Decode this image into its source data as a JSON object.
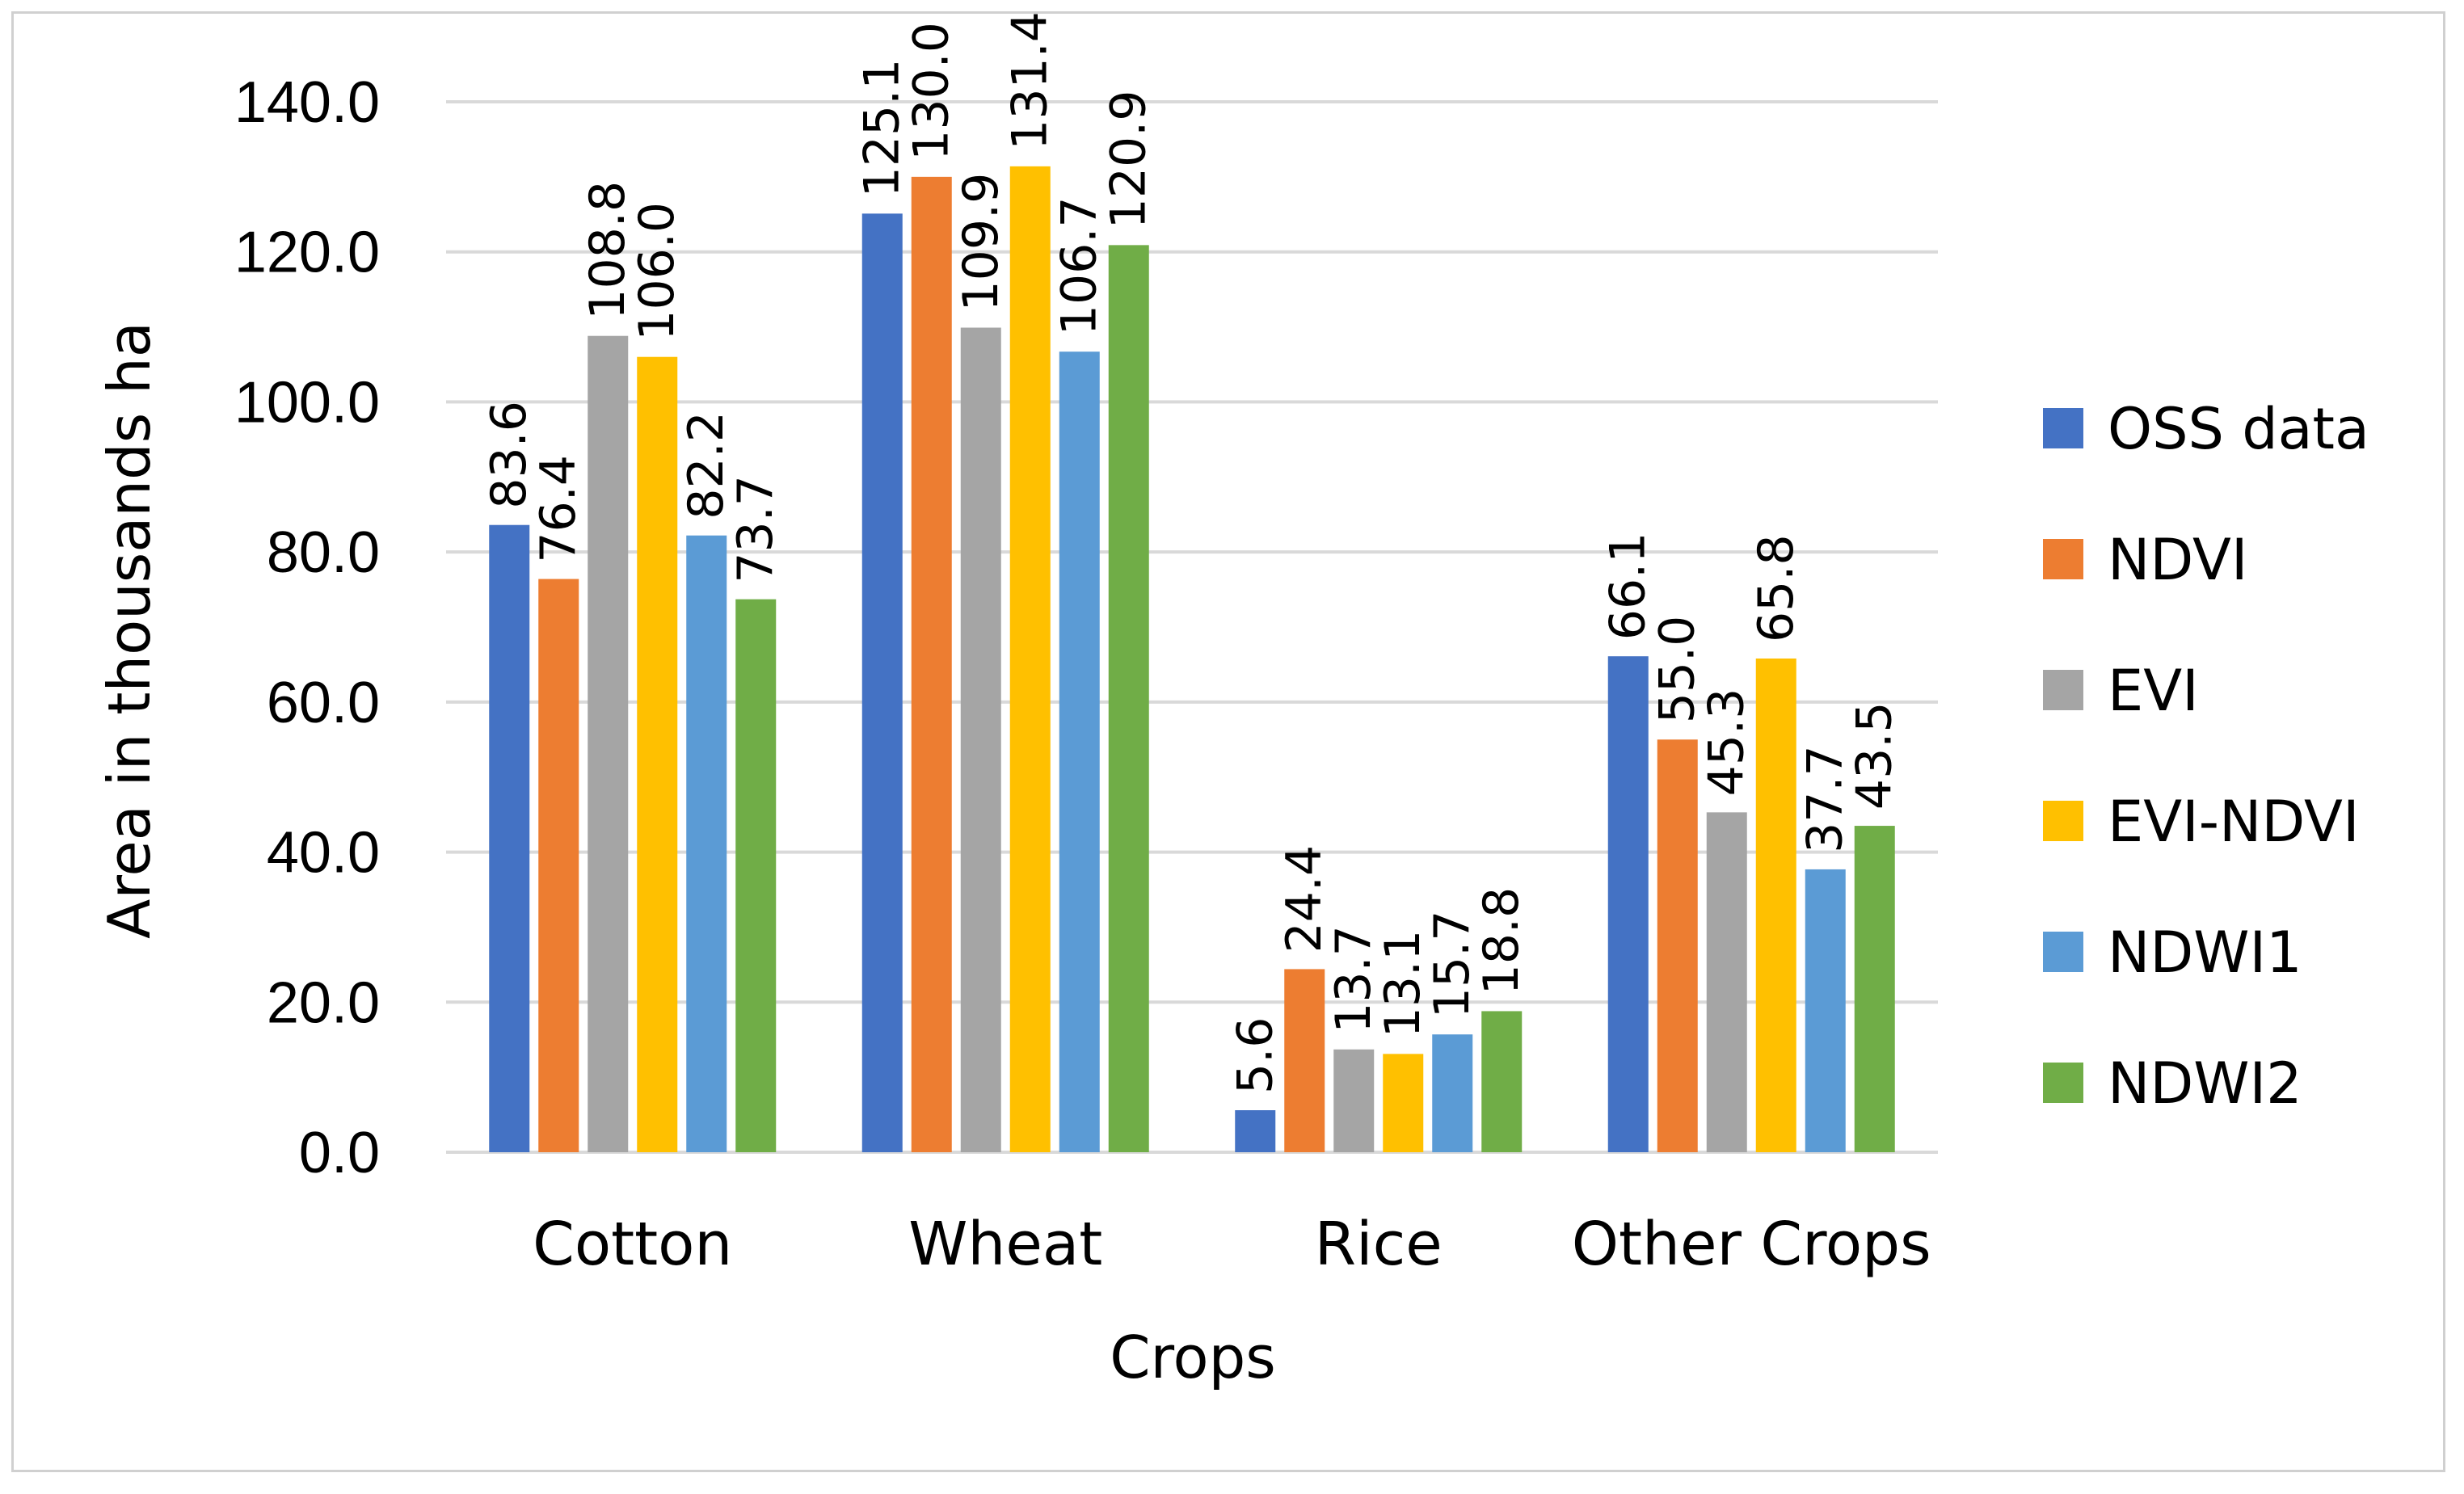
{
  "chart_data": {
    "type": "bar",
    "title": "",
    "xlabel": "Crops",
    "ylabel": "Area in thousands ha",
    "ylim": [
      0,
      140
    ],
    "ytick_step": 20,
    "ytick_labels": [
      "0.0",
      "20.0",
      "40.0",
      "60.0",
      "80.0",
      "100.0",
      "120.0",
      "140.0"
    ],
    "grid": true,
    "legend_position": "right",
    "categories": [
      "Cotton",
      "Wheat",
      "Rice",
      "Other Crops"
    ],
    "series": [
      {
        "name": "OSS data",
        "color": "#4472C4",
        "values": [
          83.6,
          125.1,
          5.6,
          66.1
        ],
        "labels": [
          "83.6",
          "125.1",
          "5.6",
          "66.1"
        ]
      },
      {
        "name": "NDVI",
        "color": "#ED7D31",
        "values": [
          76.4,
          130.0,
          24.4,
          55.0
        ],
        "labels": [
          "76.4",
          "130.0",
          "24.4",
          "55.0"
        ]
      },
      {
        "name": "EVI",
        "color": "#A5A5A5",
        "values": [
          108.8,
          109.9,
          13.7,
          45.3
        ],
        "labels": [
          "108.8",
          "109.9",
          "13.7",
          "45.3"
        ]
      },
      {
        "name": "EVI-NDVI",
        "color": "#FFC000",
        "values": [
          106.0,
          131.4,
          13.1,
          65.8
        ],
        "labels": [
          "106.0",
          "131.4",
          "13.1",
          "65.8"
        ]
      },
      {
        "name": "NDWI1",
        "color": "#5B9BD5",
        "values": [
          82.2,
          106.7,
          15.7,
          37.7
        ],
        "labels": [
          "82.2",
          "106.7",
          "15.7",
          "37.7"
        ]
      },
      {
        "name": "NDWI2",
        "color": "#70AD47",
        "values": [
          73.7,
          120.9,
          18.8,
          43.5
        ],
        "labels": [
          "73.7",
          "120.9",
          "18.8",
          "43.5"
        ]
      }
    ]
  }
}
